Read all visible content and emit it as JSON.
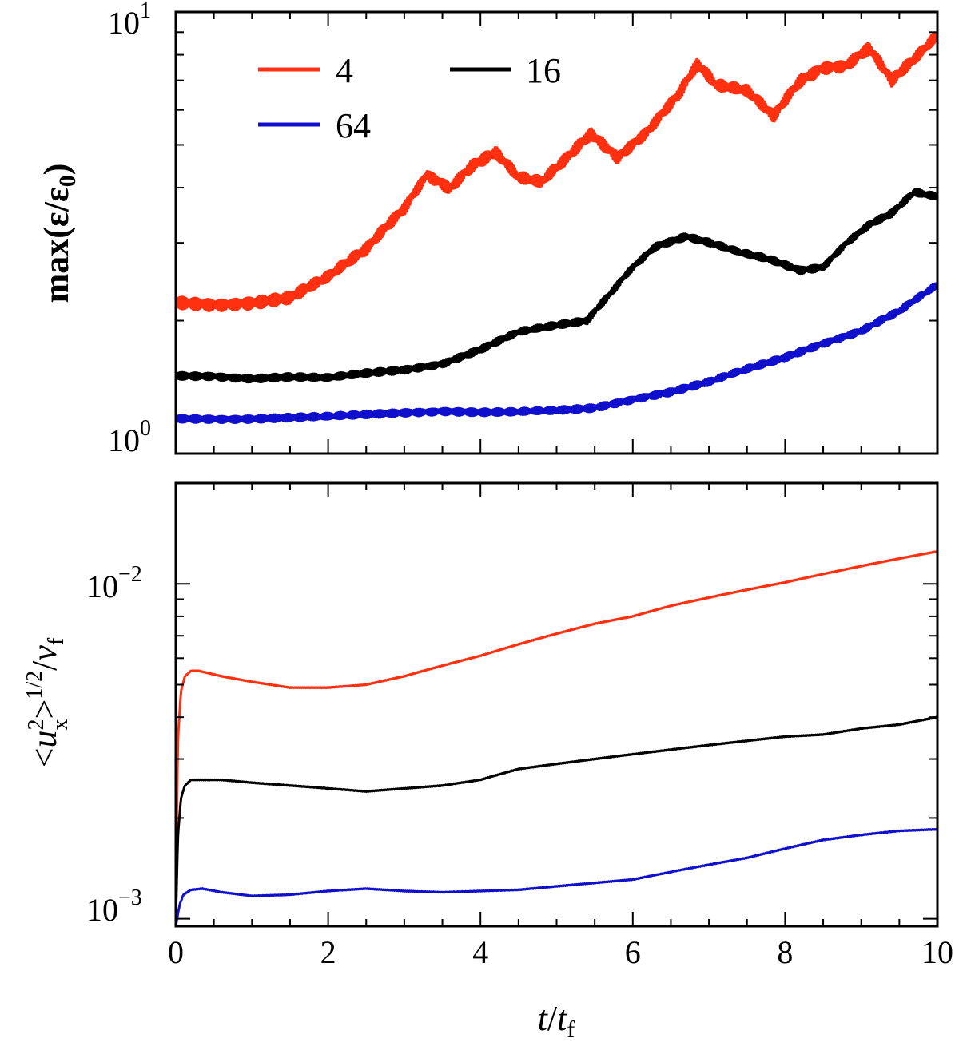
{
  "chart_data": [
    {
      "type": "line",
      "panel": "top",
      "ylabel": "max(ε/ε₀)",
      "ylabel_parts": {
        "pre": "max(ε/ε",
        "sub": "0",
        "post": ")"
      },
      "xlabel": "",
      "xlim": [
        0,
        10
      ],
      "ylim": [
        1.0,
        10.0
      ],
      "yscale": "log",
      "grid": false,
      "legend_placement": "top-left",
      "yticks": [
        {
          "mantissa": "10",
          "exp": "1",
          "value": 10
        },
        {
          "mantissa": "10",
          "exp": "0",
          "value": 1
        }
      ],
      "series": [
        {
          "name": "4",
          "color": "#ff3010",
          "x": [
            0,
            0.5,
            1.0,
            1.5,
            2.0,
            2.5,
            3.0,
            3.3,
            3.6,
            3.9,
            4.2,
            4.5,
            4.8,
            5.1,
            5.45,
            5.8,
            6.2,
            6.6,
            6.85,
            7.1,
            7.5,
            7.85,
            8.2,
            8.5,
            8.8,
            9.1,
            9.4,
            9.7,
            10.0
          ],
          "y": [
            2.2,
            2.18,
            2.2,
            2.25,
            2.5,
            2.9,
            3.6,
            4.3,
            4.0,
            4.5,
            4.8,
            4.2,
            4.1,
            4.6,
            5.3,
            4.7,
            5.4,
            6.5,
            7.6,
            6.8,
            6.6,
            5.8,
            7.0,
            7.5,
            7.6,
            8.3,
            7.0,
            7.8,
            8.8
          ]
        },
        {
          "name": "16",
          "color": "#000000",
          "x": [
            0,
            0.5,
            1.0,
            1.5,
            2.0,
            2.5,
            3.0,
            3.5,
            4.0,
            4.5,
            5.0,
            5.4,
            5.7,
            6.0,
            6.3,
            6.7,
            7.0,
            7.4,
            7.8,
            8.2,
            8.5,
            8.8,
            9.1,
            9.4,
            9.7,
            10.0
          ],
          "y": [
            1.5,
            1.5,
            1.48,
            1.49,
            1.48,
            1.52,
            1.55,
            1.6,
            1.72,
            1.88,
            1.95,
            2.0,
            2.3,
            2.65,
            2.95,
            3.1,
            3.0,
            2.85,
            2.75,
            2.6,
            2.65,
            3.0,
            3.3,
            3.5,
            3.9,
            3.8
          ]
        },
        {
          "name": "64",
          "color": "#1010cc",
          "x": [
            0,
            1.0,
            2.0,
            3.0,
            3.5,
            4.0,
            4.5,
            5.0,
            5.5,
            6.0,
            6.5,
            7.0,
            7.5,
            8.0,
            8.5,
            9.0,
            9.5,
            10.0
          ],
          "y": [
            1.2,
            1.2,
            1.21,
            1.24,
            1.25,
            1.24,
            1.24,
            1.25,
            1.27,
            1.33,
            1.38,
            1.45,
            1.55,
            1.65,
            1.78,
            1.9,
            2.1,
            2.4
          ]
        }
      ]
    },
    {
      "type": "line",
      "panel": "bottom",
      "ylabel": "<u²ₓ>^1/2/v_f",
      "ylabel_parts": {
        "u": "u",
        "sup": "2",
        "sub": "x",
        "exp": "1/2",
        "v": "v",
        "vsub": "f"
      },
      "xlabel": "t/t_f",
      "xlabel_parts": {
        "t": "t",
        "slash": "/",
        "tf": "t",
        "sub": "f"
      },
      "xlim": [
        0,
        10
      ],
      "ylim": [
        0.00095,
        0.02
      ],
      "yscale": "log",
      "grid": false,
      "xticks": [
        "0",
        "2",
        "4",
        "6",
        "8",
        "10"
      ],
      "yticks": [
        {
          "mantissa": "10",
          "exp": "−2",
          "value": 0.01
        },
        {
          "mantissa": "10",
          "exp": "−3",
          "value": 0.001
        }
      ],
      "series": [
        {
          "name": "4",
          "color": "#ff3010",
          "x": [
            0,
            0.03,
            0.07,
            0.12,
            0.2,
            0.3,
            0.6,
            1.0,
            1.5,
            2.0,
            2.5,
            3.0,
            3.5,
            4.0,
            4.5,
            5.0,
            5.5,
            6.0,
            6.5,
            7.0,
            7.5,
            8.0,
            8.5,
            9.0,
            9.5,
            10.0
          ],
          "y": [
            0.00095,
            0.0035,
            0.0048,
            0.0053,
            0.0055,
            0.0055,
            0.0053,
            0.0051,
            0.0049,
            0.0049,
            0.005,
            0.0053,
            0.0057,
            0.0061,
            0.0066,
            0.0071,
            0.0076,
            0.008,
            0.0086,
            0.0091,
            0.0096,
            0.0101,
            0.0107,
            0.0113,
            0.0119,
            0.0125
          ]
        },
        {
          "name": "16",
          "color": "#000000",
          "x": [
            0,
            0.03,
            0.07,
            0.12,
            0.2,
            0.3,
            0.6,
            1.0,
            1.5,
            2.0,
            2.5,
            3.0,
            3.5,
            4.0,
            4.5,
            5.0,
            5.5,
            6.0,
            6.5,
            7.0,
            7.5,
            8.0,
            8.5,
            9.0,
            9.5,
            10.0
          ],
          "y": [
            0.00095,
            0.0018,
            0.0023,
            0.0025,
            0.0026,
            0.0026,
            0.0026,
            0.00255,
            0.0025,
            0.00245,
            0.0024,
            0.00245,
            0.0025,
            0.0026,
            0.0028,
            0.0029,
            0.003,
            0.0031,
            0.0032,
            0.0033,
            0.0034,
            0.0035,
            0.00355,
            0.0037,
            0.0038,
            0.004
          ]
        },
        {
          "name": "64",
          "color": "#1010cc",
          "x": [
            0,
            0.05,
            0.1,
            0.2,
            0.35,
            0.6,
            1.0,
            1.5,
            2.0,
            2.5,
            3.0,
            3.5,
            4.0,
            4.5,
            5.0,
            5.5,
            6.0,
            6.5,
            7.0,
            7.5,
            8.0,
            8.5,
            9.0,
            9.5,
            10.0
          ],
          "y": [
            0.00095,
            0.0011,
            0.00118,
            0.00122,
            0.00123,
            0.0012,
            0.00117,
            0.00118,
            0.00121,
            0.00123,
            0.00121,
            0.0012,
            0.00121,
            0.00122,
            0.00125,
            0.00128,
            0.00131,
            0.00138,
            0.00145,
            0.00152,
            0.00162,
            0.00172,
            0.00178,
            0.00183,
            0.00185
          ]
        }
      ]
    }
  ]
}
